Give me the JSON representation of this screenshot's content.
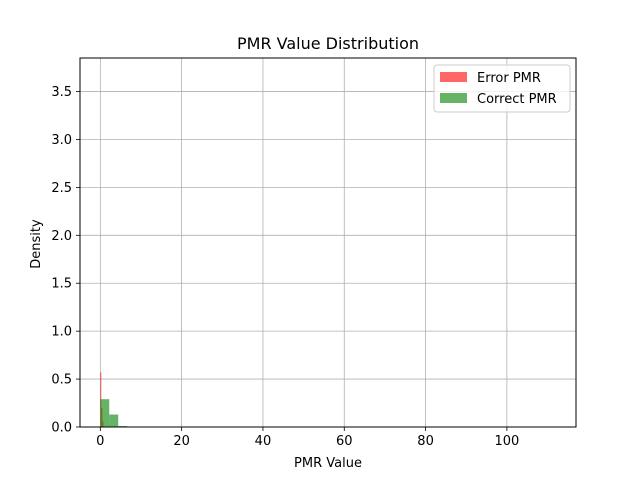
{
  "chart_data": {
    "type": "bar",
    "title": "PMR Value Distribution",
    "xlabel": "PMR Value",
    "ylabel": "Density",
    "xlim": [
      -5,
      117
    ],
    "ylim": [
      0,
      3.85
    ],
    "xticks": [
      0,
      20,
      40,
      60,
      80,
      100
    ],
    "yticks": [
      0.0,
      0.5,
      1.0,
      1.5,
      2.0,
      2.5,
      3.0,
      3.5
    ],
    "xtick_labels": [
      "0",
      "20",
      "40",
      "60",
      "80",
      "100"
    ],
    "ytick_labels": [
      "0.0",
      "0.5",
      "1.0",
      "1.5",
      "2.0",
      "2.5",
      "3.0",
      "3.5"
    ],
    "grid": true,
    "legend_position": "top-right",
    "series": [
      {
        "name": "Error PMR",
        "color": "#ff0000",
        "alpha": 0.6,
        "bins": [
          {
            "x0": 0.0,
            "x1": 0.25,
            "value": 0.57
          },
          {
            "x0": 0.25,
            "x1": 0.5,
            "value": 0.2
          },
          {
            "x0": 0.5,
            "x1": 0.75,
            "value": 0.06
          }
        ]
      },
      {
        "name": "Correct PMR",
        "color": "#008000",
        "alpha": 0.6,
        "bins": [
          {
            "x0": 0.0,
            "x1": 2.2,
            "value": 0.29
          },
          {
            "x0": 2.2,
            "x1": 4.4,
            "value": 0.13
          },
          {
            "x0": 4.4,
            "x1": 6.6,
            "value": 0.01
          }
        ]
      }
    ]
  }
}
